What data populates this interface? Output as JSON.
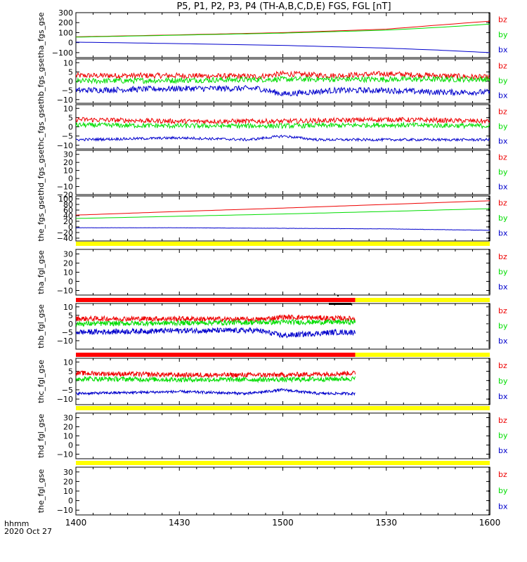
{
  "figure": {
    "title": "P5, P1, P2, P3, P4 (TH-A,B,C,D,E) FGS, FGL [nT]",
    "time_axis": {
      "unit_label": "hhmm",
      "date_label": "2020 Oct 27",
      "range_minutes": [
        840,
        960
      ],
      "ticks": [
        {
          "label": "1400",
          "t": 840
        },
        {
          "label": "1430",
          "t": 870
        },
        {
          "label": "1500",
          "t": 900
        },
        {
          "label": "1530",
          "t": 930
        },
        {
          "label": "1600",
          "t": 960
        }
      ]
    },
    "colors": {
      "bx": "#0000cc",
      "by": "#00dd00",
      "bz": "#ee0000",
      "status_yellow": "#ffff00",
      "status_red": "#ff0000"
    }
  },
  "chart_data": [
    {
      "type": "line",
      "ylabel": "tha_fgs_gse",
      "ylim": [
        -150,
        300
      ],
      "tick_labels": [
        "300",
        "200",
        "100",
        "0",
        "−100"
      ],
      "tick_values": [
        300,
        200,
        100,
        0,
        -100
      ],
      "legend": [
        "bz",
        "by",
        "bx"
      ],
      "data_end": 960,
      "series": [
        {
          "name": "bz",
          "x": [
            840,
            870,
            900,
            930,
            945,
            960
          ],
          "values": [
            58,
            78,
            100,
            135,
            175,
            215
          ],
          "noise": 0
        },
        {
          "name": "by",
          "x": [
            840,
            870,
            900,
            930,
            945,
            960
          ],
          "values": [
            55,
            75,
            95,
            125,
            152,
            185
          ],
          "noise": 0
        },
        {
          "name": "bx",
          "x": [
            840,
            870,
            900,
            930,
            945,
            960
          ],
          "values": [
            5,
            -10,
            -28,
            -55,
            -75,
            -100
          ],
          "noise": 0
        }
      ]
    },
    {
      "type": "line",
      "ylabel": "thb_fgs_gse",
      "ylim": [
        -12,
        12
      ],
      "tick_labels": [
        "10",
        "5",
        "0",
        "−5",
        "−10"
      ],
      "tick_values": [
        10,
        5,
        0,
        -5,
        -10
      ],
      "legend": [
        "bz",
        "by",
        "bx"
      ],
      "data_end": 960,
      "series": [
        {
          "name": "bz",
          "x": [
            840,
            870,
            893,
            900,
            915,
            930,
            945,
            960
          ],
          "values": [
            3,
            3,
            2.5,
            4,
            3,
            4,
            3,
            2
          ],
          "noise": 1.5
        },
        {
          "name": "by",
          "x": [
            840,
            870,
            900,
            930,
            960
          ],
          "values": [
            0,
            0.5,
            1,
            1,
            1
          ],
          "noise": 1.5
        },
        {
          "name": "bx",
          "x": [
            840,
            870,
            893,
            900,
            915,
            930,
            945,
            960
          ],
          "values": [
            -5,
            -4,
            -4,
            -7,
            -5,
            -5,
            -6,
            -6
          ],
          "noise": 1.6
        }
      ]
    },
    {
      "type": "line",
      "ylabel": "thc_fgs_gse",
      "ylim": [
        -12,
        12
      ],
      "tick_labels": [
        "10",
        "5",
        "0",
        "−5",
        "−10"
      ],
      "tick_values": [
        10,
        5,
        0,
        -5,
        -10
      ],
      "legend": [
        "bz",
        "by",
        "bx"
      ],
      "data_end": 960,
      "series": [
        {
          "name": "bz",
          "x": [
            840,
            870,
            900,
            930,
            960
          ],
          "values": [
            4,
            3,
            3,
            4,
            3
          ],
          "noise": 1.3
        },
        {
          "name": "by",
          "x": [
            840,
            870,
            900,
            930,
            960
          ],
          "values": [
            1,
            0.5,
            0.5,
            1,
            0.5
          ],
          "noise": 1.3
        },
        {
          "name": "bx",
          "x": [
            840,
            870,
            890,
            900,
            910,
            930,
            960
          ],
          "values": [
            -7,
            -6,
            -7,
            -5,
            -7,
            -7,
            -7
          ],
          "noise": 0.7
        }
      ]
    },
    {
      "type": "line",
      "ylabel": "thd_fgs_gse",
      "ylim": [
        -20,
        35
      ],
      "tick_labels": [
        "30",
        "20",
        "10",
        "0",
        "−10",
        "−20"
      ],
      "tick_values": [
        30,
        20,
        10,
        0,
        -10,
        -20
      ],
      "legend": [
        "bz",
        "by",
        "bx"
      ],
      "data_end": 840,
      "series": []
    },
    {
      "type": "line",
      "ylabel": "the_fgs_gse",
      "ylim": [
        -50,
        110
      ],
      "tick_labels": [
        "100",
        "80",
        "60",
        "40",
        "20",
        "0",
        "−20",
        "−40"
      ],
      "tick_values": [
        100,
        80,
        60,
        40,
        20,
        0,
        -20,
        -40
      ],
      "legend": [
        "bz",
        "by",
        "bx"
      ],
      "data_end": 960,
      "series": [
        {
          "name": "bz",
          "x": [
            840,
            870,
            900,
            930,
            960
          ],
          "values": [
            42,
            55,
            67,
            80,
            93
          ],
          "noise": 0
        },
        {
          "name": "by",
          "x": [
            840,
            870,
            900,
            930,
            960
          ],
          "values": [
            30,
            38,
            46,
            55,
            65
          ],
          "noise": 0
        },
        {
          "name": "bx",
          "x": [
            840,
            870,
            900,
            930,
            960
          ],
          "values": [
            -3,
            -3,
            -5,
            -7,
            -12
          ],
          "noise": 0.4
        }
      ]
    },
    {
      "type": "line",
      "ylabel": "tha_fgl_gse",
      "ylim": [
        -15,
        35
      ],
      "tick_labels": [
        "30",
        "20",
        "10",
        "0",
        "−10"
      ],
      "tick_values": [
        30,
        20,
        10,
        0,
        -10
      ],
      "legend": [
        "bz",
        "by",
        "bx"
      ],
      "data_end": 840,
      "series": []
    },
    {
      "type": "line",
      "ylabel": "thb_fgl_gse",
      "ylim": [
        -15,
        12
      ],
      "tick_labels": [
        "10",
        "5",
        "0",
        "−5",
        "−10"
      ],
      "tick_values": [
        10,
        5,
        0,
        -5,
        -10
      ],
      "legend": [
        "bz",
        "by",
        "bx"
      ],
      "data_end": 921,
      "series": [
        {
          "name": "bz",
          "x": [
            840,
            870,
            893,
            900,
            921
          ],
          "values": [
            3,
            3,
            2.5,
            4,
            3
          ],
          "noise": 1.5
        },
        {
          "name": "by",
          "x": [
            840,
            870,
            900,
            921
          ],
          "values": [
            0,
            0.5,
            1,
            1
          ],
          "noise": 1.5
        },
        {
          "name": "bx",
          "x": [
            840,
            870,
            893,
            900,
            915,
            921
          ],
          "values": [
            -5,
            -4,
            -4,
            -7,
            -5,
            -5
          ],
          "noise": 1.6
        }
      ]
    },
    {
      "type": "line",
      "ylabel": "thc_fgl_gse",
      "ylim": [
        -13,
        12
      ],
      "tick_labels": [
        "10",
        "5",
        "0",
        "−5",
        "−10"
      ],
      "tick_values": [
        10,
        5,
        0,
        -5,
        -10
      ],
      "legend": [
        "bz",
        "by",
        "bx"
      ],
      "data_end": 921,
      "series": [
        {
          "name": "bz",
          "x": [
            840,
            870,
            900,
            921
          ],
          "values": [
            4,
            3,
            3,
            4
          ],
          "noise": 1.3
        },
        {
          "name": "by",
          "x": [
            840,
            870,
            900,
            921
          ],
          "values": [
            1,
            0.5,
            0.5,
            1
          ],
          "noise": 1.3
        },
        {
          "name": "bx",
          "x": [
            840,
            870,
            890,
            900,
            910,
            921
          ],
          "values": [
            -7,
            -6,
            -7,
            -5,
            -7,
            -7
          ],
          "noise": 0.7
        }
      ]
    },
    {
      "type": "line",
      "ylabel": "thd_fgl_gse",
      "ylim": [
        -15,
        35
      ],
      "tick_labels": [
        "30",
        "20",
        "10",
        "0",
        "−10"
      ],
      "tick_values": [
        30,
        20,
        10,
        0,
        -10
      ],
      "legend": [
        "bz",
        "by",
        "bx"
      ],
      "data_end": 840,
      "series": []
    },
    {
      "type": "line",
      "ylabel": "the_fgl_gse",
      "ylim": [
        -15,
        35
      ],
      "tick_labels": [
        "30",
        "20",
        "10",
        "0",
        "−10"
      ],
      "tick_values": [
        30,
        20,
        10,
        0,
        -10
      ],
      "legend": [
        "bz",
        "by",
        "bx"
      ],
      "data_end": 840,
      "series": []
    }
  ],
  "status_bars": [
    {
      "segments": [
        {
          "from": 840,
          "to": 960,
          "color": "status_yellow"
        }
      ]
    },
    {
      "segments": [
        {
          "from": 840,
          "to": 921,
          "color": "status_red"
        },
        {
          "from": 921,
          "to": 960,
          "color": "status_yellow"
        }
      ]
    },
    {
      "segments": [
        {
          "from": 840,
          "to": 921,
          "color": "status_red"
        },
        {
          "from": 921,
          "to": 960,
          "color": "status_yellow"
        }
      ]
    },
    {
      "segments": [
        {
          "from": 840,
          "to": 960,
          "color": "status_yellow"
        }
      ]
    },
    {
      "segments": [
        {
          "from": 840,
          "to": 960,
          "color": "status_yellow"
        }
      ]
    }
  ]
}
